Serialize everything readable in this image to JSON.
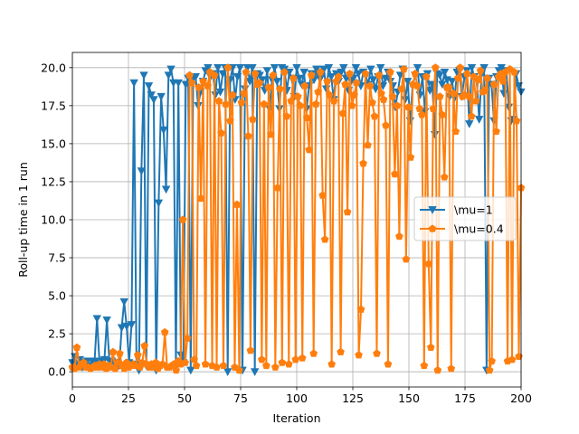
{
  "chart_data": {
    "type": "line",
    "title": "",
    "xlabel": "Iteration",
    "ylabel": "Roll-up time in 1 run",
    "xlim": [
      0,
      200
    ],
    "ylim": [
      -1,
      21
    ],
    "xticks": [
      0,
      25,
      50,
      75,
      100,
      125,
      150,
      175,
      200
    ],
    "xtick_labels": [
      "0",
      "25",
      "50",
      "75",
      "100",
      "125",
      "150",
      "175",
      "200"
    ],
    "yticks": [
      0,
      2.5,
      5,
      7.5,
      10,
      12.5,
      15,
      17.5,
      20
    ],
    "ytick_labels": [
      "0.0",
      "2.5",
      "5.0",
      "7.5",
      "10.0",
      "12.5",
      "15.0",
      "17.5",
      "20.0"
    ],
    "grid": true,
    "legend_position": "center-right",
    "series": [
      {
        "name": "\\mu=1",
        "color": "#1f77b4",
        "marker": "triangle-down",
        "values": [
          0.6,
          1,
          0.5,
          0.8,
          0.3,
          0.6,
          0.7,
          0.4,
          0.7,
          0.7,
          3.5,
          0.6,
          0.7,
          0.8,
          3.4,
          0.7,
          0.7,
          0.6,
          0.4,
          0.4,
          2.9,
          4.6,
          3,
          0.6,
          3.1,
          19,
          0.5,
          0.1,
          13.2,
          19.5,
          0.4,
          18.8,
          18.2,
          17.9,
          0.1,
          11.1,
          18.1,
          15.9,
          12,
          19.5,
          19.9,
          19,
          0.3,
          19,
          1.1,
          0.6,
          18.9,
          19.3,
          0.1,
          19.3,
          19.4,
          17.5,
          18.4,
          19.1,
          19.8,
          20,
          19.4,
          19.6,
          18.2,
          20,
          18.4,
          19.6,
          20,
          0,
          19.2,
          20,
          17.9,
          19.4,
          20,
          0.1,
          18.6,
          20,
          19.1,
          20,
          0,
          19.6,
          19.5,
          19.2,
          18.5,
          19.8,
          17.3,
          19.2,
          20,
          19.1,
          17.3,
          20,
          19.9,
          18.5,
          19.7,
          19.3,
          18.1,
          20,
          19.3,
          18.9,
          19.7,
          17.3,
          18.8,
          19.6,
          19.2,
          19.9,
          19.4,
          19.4,
          19.9,
          18.6,
          20,
          19.4,
          17.9,
          19.6,
          19.1,
          19.7,
          20,
          19.3,
          18.5,
          19.1,
          19.3,
          20,
          19.6,
          18.8,
          19.7,
          19.5,
          18.9,
          19.9,
          19.2,
          18.6,
          19.4,
          20,
          18.8,
          19.3,
          19.7,
          19.1,
          18.8,
          17.4,
          18.4,
          19.5,
          19.9,
          17.9,
          19.1,
          16.5,
          18.8,
          19.5,
          20,
          18.2,
          19.4,
          17.1,
          19.6,
          18.5,
          18.9,
          15.6,
          19.6,
          19.5,
          18.9,
          19.7,
          19.2,
          18.1,
          19.1,
          18,
          19.7,
          19.8,
          18.1,
          19.4,
          19.8,
          16.3,
          20,
          19.4,
          19.2,
          16.6,
          19.6,
          20,
          0.1,
          19.3,
          18.9,
          16.5,
          19.4,
          19.8,
          20,
          18.3,
          19.8,
          17.4,
          16.5,
          16.6,
          19.6,
          18.8,
          18.4
        ]
      },
      {
        "name": "\\mu=0.4",
        "color": "#ff7f0e",
        "marker": "pentagon",
        "values": [
          0.3,
          0.2,
          1.6,
          0.3,
          0.5,
          0.6,
          0.3,
          0.3,
          0.2,
          0.3,
          0.4,
          0.3,
          0.5,
          0.3,
          0.5,
          0.2,
          0.4,
          0.3,
          1.3,
          0.2,
          0.6,
          1.2,
          0.4,
          0.2,
          0.6,
          0.3,
          0.4,
          0.5,
          0.4,
          1.1,
          0.3,
          0.6,
          1.7,
          0.5,
          0.3,
          0.5,
          0.3,
          0.6,
          0.2,
          0.4,
          0.5,
          2.6,
          0.3,
          0.3,
          0.4,
          0.5,
          0.1,
          0.7,
          0.5,
          10,
          0.6,
          2.2,
          19.5,
          19,
          0.8,
          0.4,
          18.7,
          11.4,
          19.1,
          0.5,
          18.8,
          19.7,
          0.4,
          19.5,
          0.3,
          17.8,
          15.7,
          0.4,
          17.6,
          20,
          16.5,
          18.2,
          0.3,
          11,
          0.1,
          17.7,
          18.3,
          19.7,
          15.5,
          1.4,
          16.6,
          19.6,
          18.9,
          19,
          0.8,
          17.6,
          0.4,
          18.7,
          15.6,
          19.5,
          0.3,
          12.1,
          18.6,
          0.6,
          19.7,
          16.8,
          0.5,
          17.8,
          19.3,
          0.8,
          18.1,
          17.5,
          0.9,
          18.8,
          16.7,
          14.6,
          19.5,
          1.2,
          17.6,
          18.4,
          19.7,
          11.6,
          8.7,
          19.1,
          18.2,
          0.5,
          17.8,
          19.1,
          19.4,
          1.3,
          17,
          18.9,
          10.5,
          19.6,
          17.5,
          18.2,
          19,
          1.1,
          4.1,
          13.7,
          19.6,
          14.9,
          18.8,
          17.7,
          16.8,
          1.2,
          19.5,
          18.3,
          17.9,
          16.2,
          0.5,
          19.7,
          18.1,
          13,
          17.5,
          8.9,
          18.6,
          19.9,
          7.4,
          17.4,
          14.1,
          18.9,
          19.6,
          18.8,
          17.3,
          16.9,
          0.4,
          19.4,
          7.1,
          1.6,
          17.3,
          20,
          0.1,
          18.1,
          16.9,
          12.8,
          18.7,
          18.7,
          0.2,
          18.3,
          15.8,
          19.3,
          20,
          18.1,
          18.2,
          19.6,
          18.1,
          16.8,
          19.4,
          17.8,
          19.2,
          19.8,
          18.4,
          18.5,
          19.3,
          0.1,
          0.7,
          18.9,
          15.8,
          19.4,
          19.6,
          19.1,
          19.7,
          0.7,
          19.9,
          0.8,
          19.7,
          16.5,
          1,
          12.1
        ]
      }
    ]
  }
}
